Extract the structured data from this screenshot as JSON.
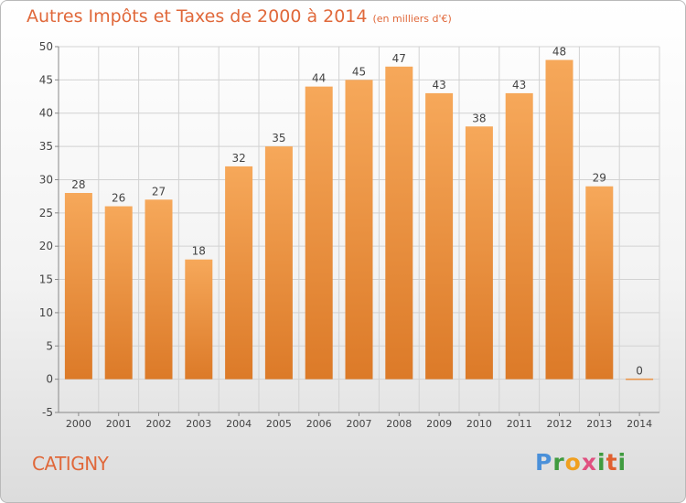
{
  "title": "Autres Impôts et Taxes de 2000 à 2014",
  "subtitle": "(en milliers d'€)",
  "commune": "CATIGNY",
  "logo": {
    "p": "P",
    "r": "r",
    "o": "o",
    "x": "x",
    "i": "i",
    "t": "t",
    "i2": "i"
  },
  "colors": {
    "bar_top": "#f6a85a",
    "bar_bottom": "#dc7a28",
    "title": "#e0683a"
  },
  "chart_data": {
    "type": "bar",
    "categories": [
      "2000",
      "2001",
      "2002",
      "2003",
      "2004",
      "2005",
      "2006",
      "2007",
      "2008",
      "2009",
      "2010",
      "2011",
      "2012",
      "2013",
      "2014"
    ],
    "values": [
      28,
      26,
      27,
      18,
      32,
      35,
      44,
      45,
      47,
      43,
      38,
      43,
      48,
      29,
      0
    ],
    "data_labels": [
      "28",
      "26",
      "27",
      "18",
      "32",
      "35",
      "44",
      "45",
      "47",
      "43",
      "38",
      "43",
      "48",
      "29",
      "0"
    ],
    "title": "Autres Impôts et Taxes de 2000 à 2014",
    "xlabel": "",
    "ylabel": "",
    "ylim": [
      -5,
      50
    ],
    "yticks": [
      -5,
      0,
      5,
      10,
      15,
      20,
      25,
      30,
      35,
      40,
      45,
      50
    ],
    "grid": true,
    "legend": "none"
  }
}
